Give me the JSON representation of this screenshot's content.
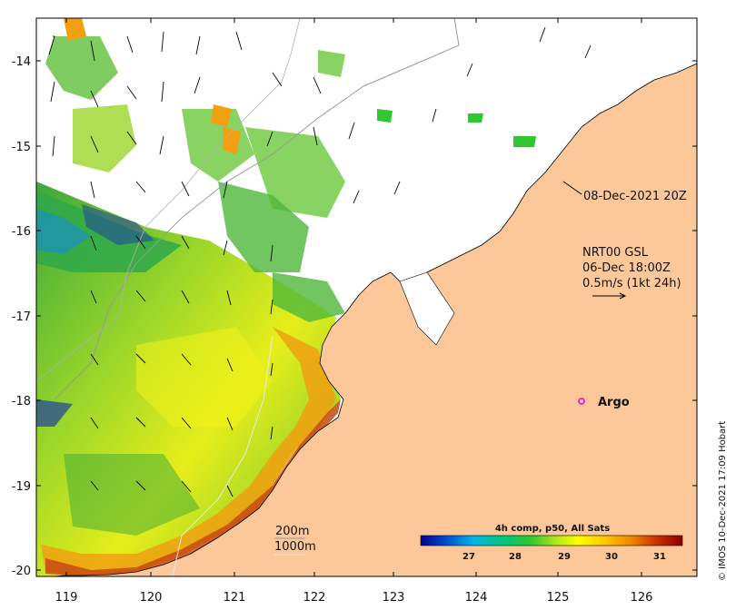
{
  "map": {
    "x_ticks": [
      "119",
      "120",
      "121",
      "122",
      "123",
      "124",
      "125",
      "126"
    ],
    "y_ticks": [
      "-14",
      "-15",
      "-16",
      "-17",
      "-18",
      "-19",
      "-20"
    ],
    "lon_range": [
      118.6,
      126.7
    ],
    "lat_range": [
      -20.05,
      -13.5
    ],
    "colors": {
      "land": "#fcc89a",
      "ocean_blank": "#ffffff",
      "frame": "#000000"
    }
  },
  "annotations": {
    "timestamp": "08-Dec-2021 20Z",
    "current_line1": "NRT00 GSL",
    "current_line2": "06-Dec 18:00Z",
    "current_line3": "0.5m/s (1kt 24h)",
    "argo_label": "Argo",
    "isobath_200": "200m",
    "isobath_1000": "1000m",
    "credit": "© IMOS 10-Dec-2021 17:09 Hobart"
  },
  "colorbar": {
    "title": "4h comp, p50, All Sats",
    "ticks": [
      "27",
      "28",
      "29",
      "30",
      "31"
    ],
    "stops": [
      "#00008b",
      "#0050d0",
      "#00b4e6",
      "#00c87a",
      "#2fc82f",
      "#b4e61e",
      "#ffff00",
      "#ffc800",
      "#f08c00",
      "#c83200",
      "#8b0000"
    ]
  },
  "argo": {
    "lon": 125.3,
    "lat": -18.0,
    "color": "#e000e0"
  }
}
